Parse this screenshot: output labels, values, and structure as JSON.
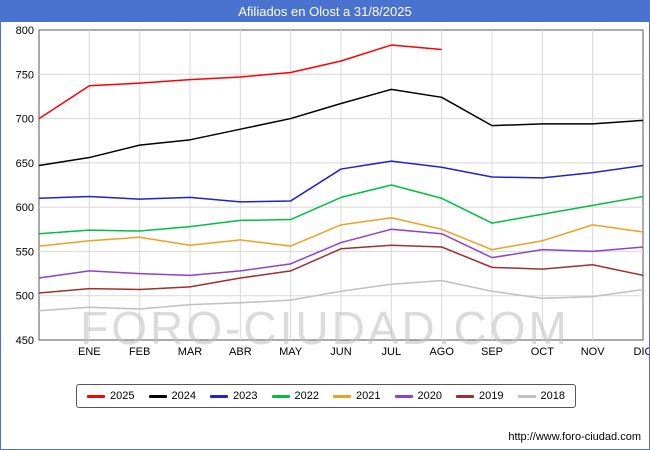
{
  "header": {
    "title": "Afiliados en Olost a 31/8/2025"
  },
  "watermark": "FORO-CIUDAD.COM",
  "footer": {
    "url": "http://www.foro-ciudad.com"
  },
  "chart_data": {
    "type": "line",
    "title": "Afiliados en Olost a 31/8/2025",
    "x_labels": [
      "",
      "ENE",
      "FEB",
      "MAR",
      "ABR",
      "MAY",
      "JUN",
      "JUL",
      "AGO",
      "SEP",
      "OCT",
      "NOV",
      "DIC"
    ],
    "ylim": [
      450,
      800
    ],
    "ytick_step": 50,
    "grid": true,
    "legend_position": "bottom",
    "series": [
      {
        "name": "2025",
        "color": "#ff0000",
        "values": [
          700,
          737,
          740,
          744,
          747,
          752,
          765,
          783,
          778
        ]
      },
      {
        "name": "2024",
        "color": "#000000",
        "values": [
          647,
          656,
          670,
          676,
          688,
          700,
          717,
          733,
          724,
          692,
          694,
          694,
          698
        ]
      },
      {
        "name": "2023",
        "color": "#2222cc",
        "values": [
          610,
          612,
          609,
          611,
          606,
          607,
          643,
          652,
          645,
          634,
          633,
          639,
          647
        ]
      },
      {
        "name": "2022",
        "color": "#00c040",
        "values": [
          570,
          574,
          573,
          578,
          585,
          586,
          611,
          625,
          610,
          582,
          592,
          602,
          612
        ]
      },
      {
        "name": "2021",
        "color": "#efa021",
        "values": [
          556,
          562,
          566,
          557,
          563,
          556,
          580,
          588,
          575,
          552,
          562,
          580,
          572
        ]
      },
      {
        "name": "2020",
        "color": "#9040d0",
        "values": [
          520,
          528,
          525,
          523,
          528,
          536,
          560,
          575,
          570,
          543,
          552,
          550,
          555
        ]
      },
      {
        "name": "2019",
        "color": "#a03030",
        "values": [
          503,
          508,
          507,
          510,
          520,
          528,
          553,
          557,
          555,
          532,
          530,
          535,
          523
        ]
      },
      {
        "name": "2018",
        "color": "#c0c0c0",
        "values": [
          483,
          487,
          485,
          490,
          492,
          495,
          505,
          513,
          517,
          505,
          497,
          499,
          507
        ]
      }
    ]
  }
}
